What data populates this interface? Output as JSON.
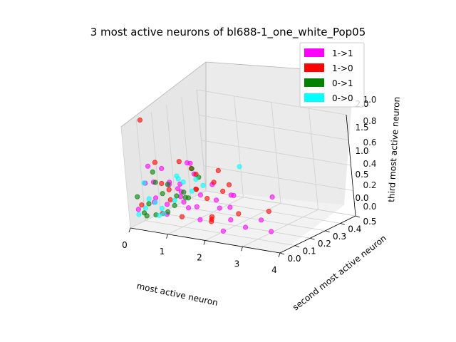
{
  "chart_data": {
    "type": "scatter",
    "projection": "3d",
    "title": "3 most active neurons of bl688-1_one_white_Pop05",
    "xlabel": "most active neuron",
    "ylabel": "second most active neuron",
    "zlabel": "third most active neuron",
    "x_ticks": [
      "0",
      "1",
      "2",
      "3",
      "4"
    ],
    "y_ticks": [
      "0.0",
      "0.1",
      "0.2",
      "0.3",
      "0.4",
      "0.5"
    ],
    "z_ticks": [
      "0.0",
      "0.5",
      "1.0",
      "1.5",
      "2.0"
    ],
    "frame_ticks": [
      "0.0",
      "0.2",
      "0.4",
      "0.6",
      "0.8",
      "1.0"
    ],
    "xlim": [
      0,
      4
    ],
    "ylim": [
      0,
      0.5
    ],
    "zlim": [
      0,
      2.0
    ],
    "grid": true,
    "legend_position": "top-right",
    "series": [
      {
        "name": "1->1",
        "color": "#ff00ff",
        "points": [
          [
            3.6,
            0.05,
            0.3
          ],
          [
            2.0,
            0.45,
            0.2
          ],
          [
            1.6,
            0.3,
            0.4
          ],
          [
            2.5,
            0.25,
            0.1
          ],
          [
            0.1,
            0.15,
            0.7
          ],
          [
            0.3,
            0.2,
            0.6
          ],
          [
            0.2,
            0.1,
            1.1
          ],
          [
            0.2,
            0.35,
            0.8
          ],
          [
            0.5,
            0.05,
            0.5
          ],
          [
            0.4,
            0.25,
            0.4
          ],
          [
            0.1,
            0.3,
            0.35
          ],
          [
            0.6,
            0.1,
            0.2
          ],
          [
            0.7,
            0.3,
            0.3
          ],
          [
            0.8,
            0.15,
            0.5
          ],
          [
            1.0,
            0.2,
            0.25
          ],
          [
            1.2,
            0.1,
            0.4
          ],
          [
            1.4,
            0.25,
            0.2
          ],
          [
            0.9,
            0.35,
            0.15
          ],
          [
            0.15,
            0.4,
            0.5
          ],
          [
            0.3,
            0.05,
            0.85
          ],
          [
            1.7,
            0.05,
            0.3
          ],
          [
            2.1,
            0.15,
            0.2
          ],
          [
            2.3,
            0.05,
            0.15
          ],
          [
            1.9,
            0.2,
            0.35
          ],
          [
            0.2,
            0.2,
            0.2
          ],
          [
            0.4,
            0.45,
            0.25
          ],
          [
            0.6,
            0.2,
            0.65
          ],
          [
            0.25,
            0.12,
            0.45
          ],
          [
            0.05,
            0.05,
            0.3
          ],
          [
            1.1,
            0.4,
            0.2
          ],
          [
            2.7,
            0.1,
            0.2
          ],
          [
            1.3,
            0.05,
            0.6
          ],
          [
            0.5,
            0.3,
            0.9
          ],
          [
            0.35,
            0.15,
            1.0
          ],
          [
            0.1,
            0.25,
            0.55
          ]
        ]
      },
      {
        "name": "1->0",
        "color": "#ff0000",
        "points": [
          [
            0.1,
            0.1,
            2.0
          ],
          [
            1.5,
            0.3,
            0.6
          ],
          [
            2.3,
            0.35,
            0.1
          ],
          [
            1.8,
            0.1,
            0.25
          ],
          [
            0.4,
            0.1,
            1.2
          ],
          [
            0.2,
            0.4,
            0.5
          ],
          [
            0.3,
            0.2,
            0.3
          ],
          [
            0.5,
            0.15,
            0.6
          ],
          [
            0.6,
            0.3,
            0.4
          ],
          [
            1.0,
            0.1,
            0.2
          ],
          [
            1.3,
            0.2,
            0.45
          ],
          [
            0.1,
            0.2,
            0.6
          ],
          [
            0.15,
            0.05,
            0.4
          ],
          [
            0.7,
            0.05,
            0.3
          ],
          [
            0.3,
            0.35,
            0.7
          ],
          [
            1.6,
            0.15,
            0.2
          ],
          [
            2.0,
            0.05,
            0.3
          ],
          [
            0.8,
            0.25,
            0.5
          ],
          [
            0.2,
            0.3,
            0.9
          ],
          [
            0.45,
            0.45,
            0.3
          ],
          [
            1.9,
            0.25,
            0.15
          ],
          [
            0.6,
            0.45,
            0.55
          ],
          [
            1.1,
            0.35,
            0.35
          ]
        ]
      },
      {
        "name": "0->1",
        "color": "#008000",
        "points": [
          [
            0.05,
            0.1,
            0.1
          ],
          [
            0.1,
            0.2,
            0.4
          ],
          [
            0.05,
            0.3,
            0.2
          ],
          [
            0.2,
            0.05,
            0.25
          ],
          [
            0.1,
            0.4,
            0.6
          ],
          [
            0.15,
            0.15,
            0.7
          ],
          [
            0.05,
            0.25,
            0.5
          ],
          [
            0.3,
            0.1,
            0.15
          ],
          [
            0.25,
            0.3,
            0.3
          ],
          [
            0.05,
            0.05,
            0.55
          ],
          [
            0.4,
            0.2,
            0.2
          ],
          [
            0.05,
            0.45,
            0.35
          ],
          [
            0.15,
            0.35,
            0.1
          ],
          [
            0.35,
            0.05,
            0.45
          ],
          [
            0.1,
            0.15,
            0.9
          ],
          [
            0.5,
            0.25,
            0.3
          ],
          [
            0.2,
            0.2,
            0.05
          ]
        ]
      },
      {
        "name": "0->0",
        "color": "#00ffff",
        "points": [
          [
            0.05,
            0.05,
            0.2
          ],
          [
            0.1,
            0.15,
            0.3
          ],
          [
            0.05,
            0.2,
            0.1
          ],
          [
            0.15,
            0.1,
            0.45
          ],
          [
            0.2,
            0.25,
            0.2
          ],
          [
            0.05,
            0.35,
            0.4
          ],
          [
            0.1,
            0.3,
            0.6
          ],
          [
            0.3,
            0.15,
            0.1
          ],
          [
            0.05,
            0.1,
            0.75
          ],
          [
            0.25,
            0.05,
            0.35
          ],
          [
            1.4,
            0.4,
            0.8
          ],
          [
            0.4,
            0.35,
            0.5
          ],
          [
            0.15,
            0.45,
            0.2
          ],
          [
            0.6,
            0.05,
            0.25
          ],
          [
            0.35,
            0.25,
            0.65
          ],
          [
            0.05,
            0.4,
            0.15
          ]
        ]
      }
    ]
  }
}
